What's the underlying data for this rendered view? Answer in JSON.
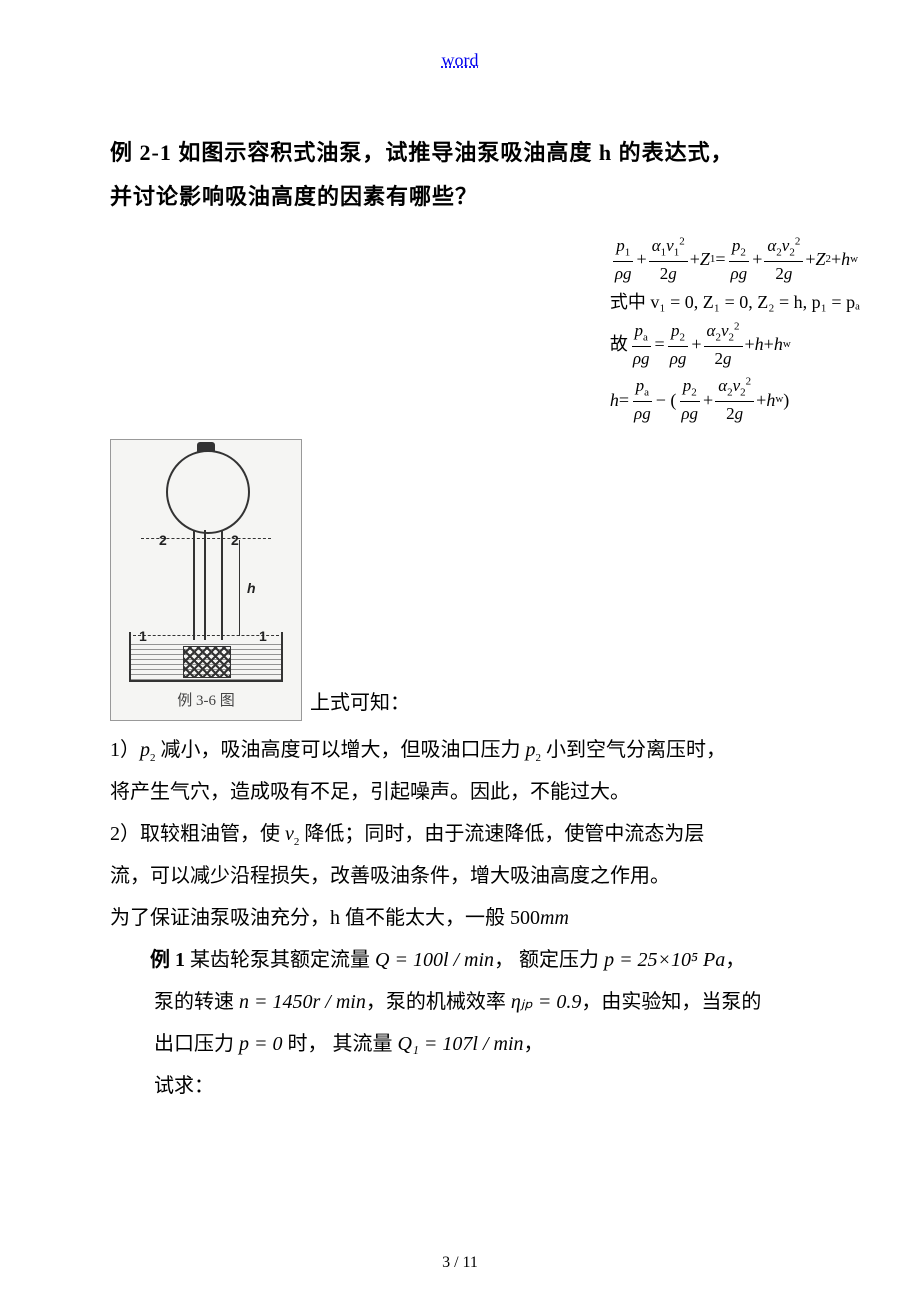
{
  "header": {
    "link_text": "word"
  },
  "title": {
    "line1": "例 2-1 如图示容积式油泵，试推导油泵吸油高度 h 的表达式，",
    "line2": "并讨论影响吸油高度的因素有哪些？"
  },
  "equations": {
    "row2_prefix": "式中",
    "row2_body": "v₁ = 0, Z₁ = 0, Z₂ = h, p₁ = pₐ",
    "row3_prefix": "故"
  },
  "figure": {
    "label_2a": "2",
    "label_2b": "2",
    "label_1a": "1",
    "label_1b": "1",
    "label_h": "h",
    "caption": "例 3-6 图",
    "after_text": "上式可知："
  },
  "body": {
    "p1a": "1）",
    "p1b": " 减小，吸油高度可以增大，但吸油口压力 ",
    "p1c": " 小到空气分离压时，",
    "p2": "将产生气穴，造成吸有不足，引起噪声。因此，不能过大。",
    "p3a": "2）取较粗油管，使 ",
    "p3b": " 降低；同时，由于流速降低，使管中流态为层",
    "p4": "流，可以减少沿程损失，改善吸油条件，增大吸油高度之作用。",
    "p5a": "为了保证油泵吸油充分，h 值不能太大，一般 500",
    "p5_unit": "mm",
    "ex1_label": "例 1",
    "ex1_a": " 某齿轮泵其额定流量 ",
    "Q_eq": "Q = 100l / min",
    "ex1_b": "， 额定压力 ",
    "p_eq": "p = 25×10⁵ Pa",
    "ex1_c": "，",
    "ex2_a": "泵的转速 ",
    "n_eq": "n = 1450r / min",
    "ex2_b": "，泵的机械效率 ",
    "eta_eq": "ηⱼₚ = 0.9",
    "ex2_c": "，由实验知，当泵的",
    "ex3_a": "出口压力 ",
    "p0_eq": "p = 0",
    "ex3_b": " 时， 其流量 ",
    "Q1_eq": "Q₁ = 107l / min",
    "ex3_c": "，",
    "ex4": "试求："
  },
  "footer": {
    "page": "3 / 11"
  },
  "style": {
    "link_color": "#0000ee",
    "text_color": "#000000",
    "bg": "#ffffff"
  }
}
